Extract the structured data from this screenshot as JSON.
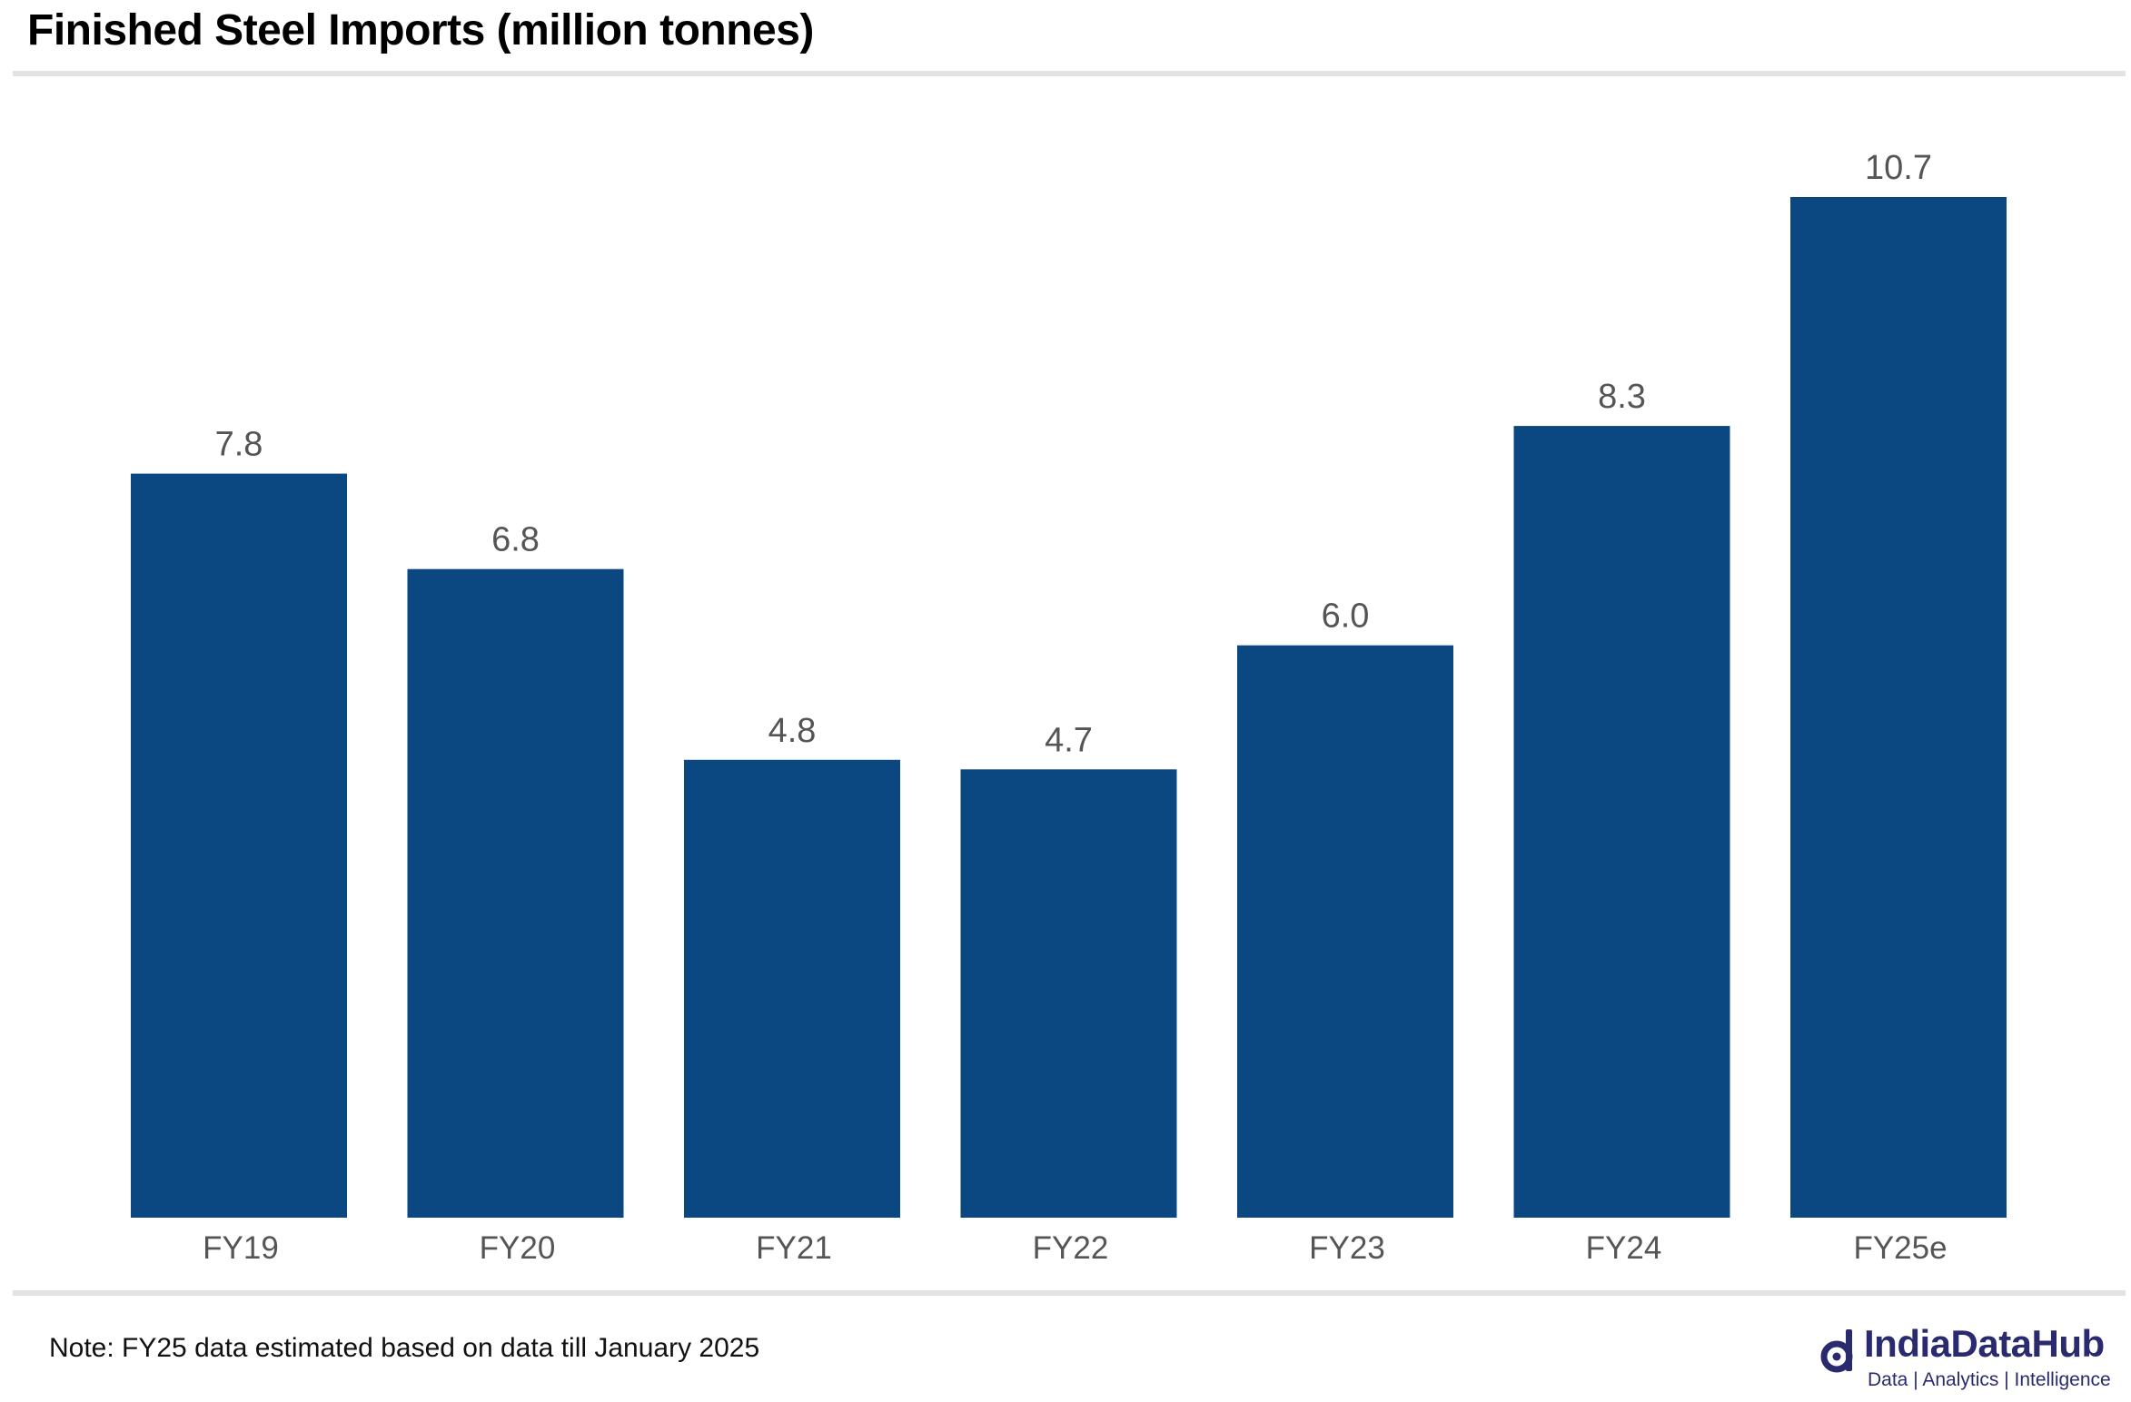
{
  "title": "Finished Steel Imports (million tonnes)",
  "note": "Note: FY25 data estimated based on data till January 2025",
  "logo": {
    "name": "IndiaDataHub",
    "tagline": "Data | Analytics | Intelligence"
  },
  "colors": {
    "bar": "#0b4780",
    "label": "#555555",
    "rule": "#e3e3e3",
    "logo": "#2a2a6e"
  },
  "chart_data": {
    "type": "bar",
    "title": "Finished Steel Imports (million tonnes)",
    "xlabel": "",
    "ylabel": "",
    "categories": [
      "FY19",
      "FY20",
      "FY21",
      "FY22",
      "FY23",
      "FY24",
      "FY25e"
    ],
    "values": [
      7.8,
      6.8,
      4.8,
      4.7,
      6.0,
      8.3,
      10.7
    ],
    "value_labels": [
      "7.8",
      "6.8",
      "4.8",
      "4.7",
      "6.0",
      "8.3",
      "10.7"
    ],
    "ylim": [
      0,
      10.7
    ],
    "grid": false,
    "legend": "none",
    "y_axis_shown": false
  }
}
